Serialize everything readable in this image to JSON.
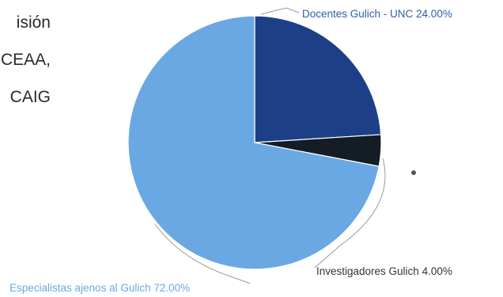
{
  "side_text": {
    "lines": [
      "isión",
      "CEAA,",
      "CAIG"
    ]
  },
  "colors": {
    "docentes": "#1c3f87",
    "investigadores": "#141c26",
    "especialistas": "#6aa8e3",
    "label_blue": "#2f5ca8",
    "label_light": "#6aa8e3",
    "label_dark": "#333333",
    "leader": "#9a9a9a"
  },
  "chart_data": {
    "type": "pie",
    "slices": [
      {
        "label": "Docentes Gulich - UNC 24.00%",
        "category": "Docentes Gulich - UNC",
        "value": 24.0,
        "color": "#1c3f87"
      },
      {
        "label": "Investigadores Gulich 4.00%",
        "category": "Investigadores Gulich",
        "value": 4.0,
        "color": "#141c26"
      },
      {
        "label": "Especialistas ajenos al Gulich 72.00%",
        "category": "Especialistas ajenos al Gulich",
        "value": 72.0,
        "color": "#6aa8e3"
      }
    ],
    "legend": "none",
    "start_angle": "top",
    "direction": "clockwise"
  }
}
